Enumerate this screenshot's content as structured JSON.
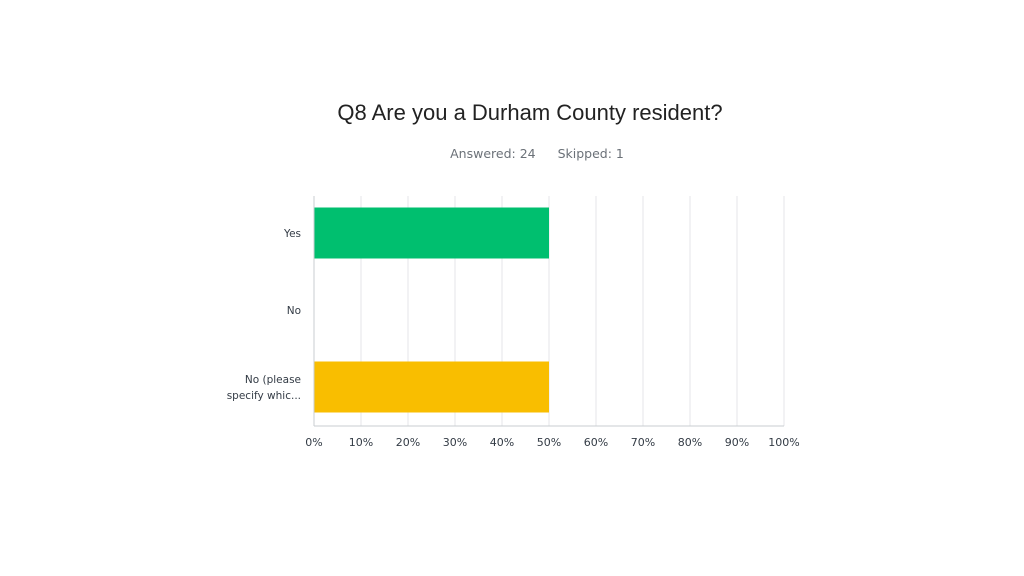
{
  "survey": {
    "title": "Q8 Are you a Durham County resident?",
    "answered": "Answered: 24",
    "skipped": "Skipped: 1"
  },
  "chart_data": {
    "type": "bar",
    "orientation": "horizontal",
    "categories": [
      [
        "Yes"
      ],
      [
        "No"
      ],
      [
        "No (please",
        "specify whic..."
      ]
    ],
    "values": [
      50,
      0,
      50
    ],
    "colors": [
      "#00bf6f",
      "#cccccc",
      "#f9be00"
    ],
    "xlim": [
      0,
      100
    ],
    "xticks": [
      "0%",
      "10%",
      "20%",
      "30%",
      "40%",
      "50%",
      "60%",
      "70%",
      "80%",
      "90%",
      "100%"
    ],
    "grid": true
  }
}
